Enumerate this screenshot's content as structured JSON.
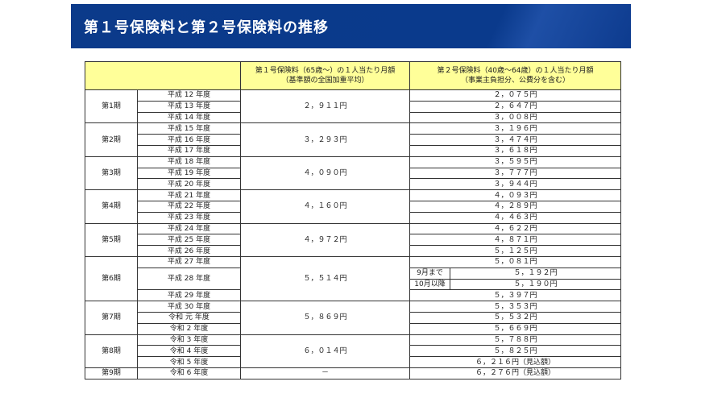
{
  "title": "第１号保険料と第２号保険料の推移",
  "header": {
    "col1_line1": "第１号保険料（65歳～）の１人当たり月額",
    "col1_line2": "（基準額の全国加重平均）",
    "col2_line1": "第２号保険料（40歳～64歳）の１人当たり月額",
    "col2_line2": "（事業主負担分、公費分を含む）"
  },
  "colors": {
    "banner": "#0b3a8a",
    "header_bg": "#ffff99"
  },
  "periods": [
    {
      "label": "第1期",
      "premium1": "２，９１１円",
      "years": [
        {
          "year": "平成 12 年度",
          "premium2": "２，０７５円"
        },
        {
          "year": "平成 13 年度",
          "premium2": "２，６４７円"
        },
        {
          "year": "平成 14 年度",
          "premium2": "３，００８円"
        }
      ]
    },
    {
      "label": "第2期",
      "premium1": "３，２９３円",
      "years": [
        {
          "year": "平成 15 年度",
          "premium2": "３，１９６円"
        },
        {
          "year": "平成 16 年度",
          "premium2": "３，４７４円"
        },
        {
          "year": "平成 17 年度",
          "premium2": "３，６１８円"
        }
      ]
    },
    {
      "label": "第3期",
      "premium1": "４，０９０円",
      "years": [
        {
          "year": "平成 18 年度",
          "premium2": "３，５９５円"
        },
        {
          "year": "平成 19 年度",
          "premium2": "３，７７７円"
        },
        {
          "year": "平成 20 年度",
          "premium2": "３，９４４円"
        }
      ]
    },
    {
      "label": "第4期",
      "premium1": "４，１６０円",
      "years": [
        {
          "year": "平成 21 年度",
          "premium2": "４，０９３円"
        },
        {
          "year": "平成 22 年度",
          "premium2": "４，２８９円"
        },
        {
          "year": "平成 23 年度",
          "premium2": "４，４６３円"
        }
      ]
    },
    {
      "label": "第5期",
      "premium1": "４，９７２円",
      "years": [
        {
          "year": "平成 24 年度",
          "premium2": "４，６２２円"
        },
        {
          "year": "平成 25 年度",
          "premium2": "４，８７１円"
        },
        {
          "year": "平成 26 年度",
          "premium2": "５，１２５円"
        }
      ]
    },
    {
      "label": "第6期",
      "premium1": "５，５１４円",
      "years": [
        {
          "year": "平成 27 年度",
          "premium2": "５，０８１円"
        },
        {
          "year": "平成 28 年度",
          "split": [
            {
              "label": "9月まで",
              "premium2": "５，１９２円"
            },
            {
              "label": "10月以降",
              "premium2": "５，１９０円"
            }
          ]
        },
        {
          "year": "平成 29 年度",
          "premium2": "５，３９７円"
        }
      ]
    },
    {
      "label": "第7期",
      "premium1": "５，８６９円",
      "years": [
        {
          "year": "平成 30 年度",
          "premium2": "５，３５３円"
        },
        {
          "year": "令和 元 年度",
          "premium2": "５，５３２円"
        },
        {
          "year": "令和 2 年度",
          "premium2": "５，６６９円"
        }
      ]
    },
    {
      "label": "第8期",
      "premium1": "６，０１４円",
      "years": [
        {
          "year": "令和 3 年度",
          "premium2": "５，７８８円"
        },
        {
          "year": "令和 4 年度",
          "premium2": "５，８２５円"
        },
        {
          "year": "令和 5 年度",
          "premium2": "６，２１６円（見込額）"
        }
      ]
    },
    {
      "label": "第9期",
      "premium1": "－",
      "years": [
        {
          "year": "令和 6 年度",
          "premium2": "６，２７６円（見込額）"
        }
      ]
    }
  ]
}
